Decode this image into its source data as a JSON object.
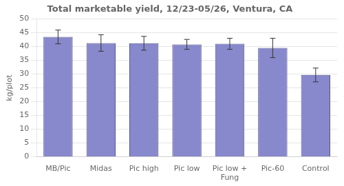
{
  "chart_data": {
    "type": "bar",
    "title": "Total marketable yield, 12/23-05/26, Ventura, CA",
    "ylabel": "kg/plot",
    "categories": [
      "MB/Pic",
      "Midas",
      "Pic high",
      "Pic low",
      "Pic low +\nFung",
      "Pic-60",
      "Control"
    ],
    "values": [
      43.5,
      41.3,
      41.2,
      40.8,
      41.0,
      39.5,
      29.7
    ],
    "errors": [
      2.5,
      3.0,
      2.5,
      1.8,
      2.0,
      3.5,
      2.5
    ],
    "color": "#8888cc",
    "ylim": [
      0,
      50
    ],
    "yticks": [
      0,
      5,
      10,
      15,
      20,
      25,
      30,
      35,
      40,
      45,
      50
    ],
    "grid": true
  }
}
